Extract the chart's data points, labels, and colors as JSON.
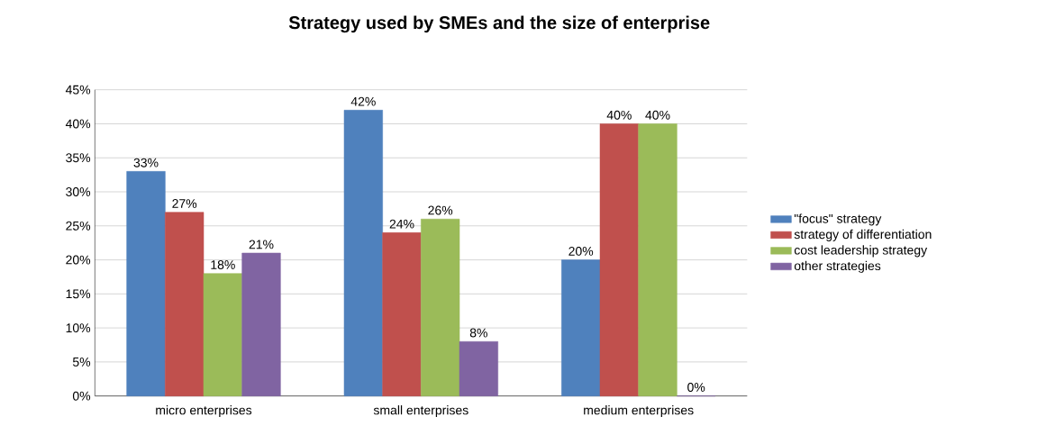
{
  "chart_data": {
    "type": "bar",
    "title": "Strategy used by SMEs and the size of enterprise",
    "categories": [
      "micro enterprises",
      "small enterprises",
      "medium enterprises"
    ],
    "series": [
      {
        "name": "\"focus\" strategy",
        "color": "#4f81bd",
        "values": [
          33,
          42,
          20
        ],
        "value_labels": [
          "33%",
          "42%",
          "20%"
        ]
      },
      {
        "name": "strategy of differentiation",
        "color": "#c0504d",
        "values": [
          27,
          24,
          40
        ],
        "value_labels": [
          "27%",
          "24%",
          "40%"
        ]
      },
      {
        "name": "cost leadership strategy",
        "color": "#9bbb59",
        "values": [
          18,
          26,
          40
        ],
        "value_labels": [
          "18%",
          "26%",
          "40%"
        ]
      },
      {
        "name": "other strategies",
        "color": "#8064a2",
        "values": [
          21,
          8,
          0
        ],
        "value_labels": [
          "21%",
          "8%",
          "0%"
        ]
      }
    ],
    "ylim": [
      0,
      45
    ],
    "yticks": [
      {
        "value": 0,
        "label": "0%"
      },
      {
        "value": 5,
        "label": "5%"
      },
      {
        "value": 10,
        "label": "10%"
      },
      {
        "value": 15,
        "label": "15%"
      },
      {
        "value": 20,
        "label": "20%"
      },
      {
        "value": 25,
        "label": "25%"
      },
      {
        "value": 30,
        "label": "30%"
      },
      {
        "value": 35,
        "label": "35%"
      },
      {
        "value": 40,
        "label": "40%"
      },
      {
        "value": 45,
        "label": "45%"
      }
    ],
    "grid": "y",
    "legend": "right"
  }
}
